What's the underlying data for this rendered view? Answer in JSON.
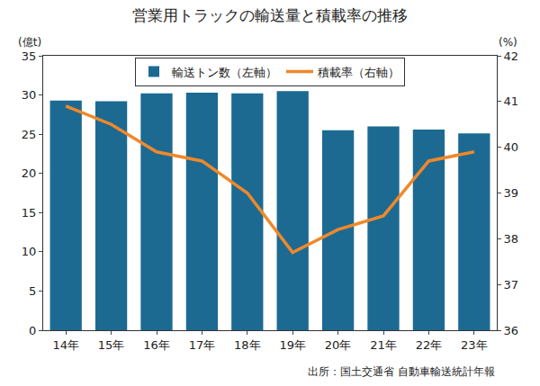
{
  "chart_data": {
    "type": "bar",
    "title": "営業用トラックの輸送量と積載率の推移",
    "ylabel": "(億t)",
    "y2label": "(%)",
    "source": "出所：国土交通省 自動車輸送統計年報",
    "categories": [
      "14年",
      "15年",
      "16年",
      "17年",
      "18年",
      "19年",
      "20年",
      "21年",
      "22年",
      "23年"
    ],
    "series": [
      {
        "name": "輸送トン数（左軸）",
        "type": "bar",
        "color": "#1c6a92",
        "values": [
          29.3,
          29.2,
          30.2,
          30.3,
          30.2,
          30.5,
          25.5,
          26.0,
          25.6,
          25.1
        ]
      },
      {
        "name": "積載率（右軸）",
        "type": "line",
        "axis": "y2",
        "color": "#f0882a",
        "values": [
          40.9,
          40.5,
          39.9,
          39.7,
          39.0,
          37.7,
          38.2,
          38.5,
          39.7,
          39.9
        ]
      }
    ],
    "ylim": [
      0,
      35
    ],
    "yticks": [
      0,
      5,
      10,
      15,
      20,
      25,
      30,
      35
    ],
    "y2lim": [
      36,
      42
    ],
    "y2ticks": [
      36,
      37,
      38,
      39,
      40,
      41,
      42
    ],
    "grid": false,
    "legend": "top"
  }
}
